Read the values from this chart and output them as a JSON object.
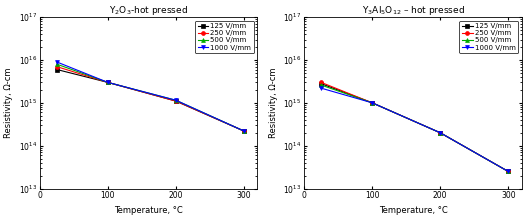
{
  "left_title": "Y$_2$O$_3$-hot pressed",
  "right_title": "Y$_3$Al$_5$O$_{12}$ – hot pressed",
  "xlabel": "Temperature, °C",
  "ylabel": "Resistivity, Ω-cm",
  "temperatures": [
    25,
    100,
    200,
    300
  ],
  "left_data": {
    "125": [
      6000000000000000.0,
      3000000000000000.0,
      1100000000000000.0,
      220000000000000.0
    ],
    "250": [
      7000000000000000.0,
      3000000000000000.0,
      1100000000000000.0,
      220000000000000.0
    ],
    "500": [
      8000000000000000.0,
      3000000000000000.0,
      1150000000000000.0,
      220000000000000.0
    ],
    "1000": [
      9000000000000000.0,
      3000000000000000.0,
      1150000000000000.0,
      220000000000000.0
    ]
  },
  "right_data": {
    "125": [
      2800000000000000.0,
      1000000000000000.0,
      200000000000000.0,
      25000000000000.0
    ],
    "250": [
      3000000000000000.0,
      1000000000000000.0,
      200000000000000.0,
      25000000000000.0
    ],
    "500": [
      2600000000000000.0,
      1000000000000000.0,
      200000000000000.0,
      25000000000000.0
    ],
    "1000": [
      2200000000000000.0,
      1000000000000000.0,
      200000000000000.0,
      25000000000000.0
    ]
  },
  "legend_labels": [
    "125 V/mm",
    "250 V/mm",
    "500 V/mm",
    "1000 V/mm"
  ],
  "colors": [
    "#000000",
    "#ff0000",
    "#00aa00",
    "#0000ff"
  ],
  "markers": [
    "s",
    "o",
    "^",
    "v"
  ],
  "ylim_left": [
    10000000000000.0,
    1e+17
  ],
  "ylim_right": [
    10000000000000.0,
    1e+17
  ],
  "xlim": [
    0,
    320
  ],
  "title_fontsize": 6.5,
  "label_fontsize": 6.0,
  "tick_fontsize": 5.5,
  "legend_fontsize": 5.0
}
